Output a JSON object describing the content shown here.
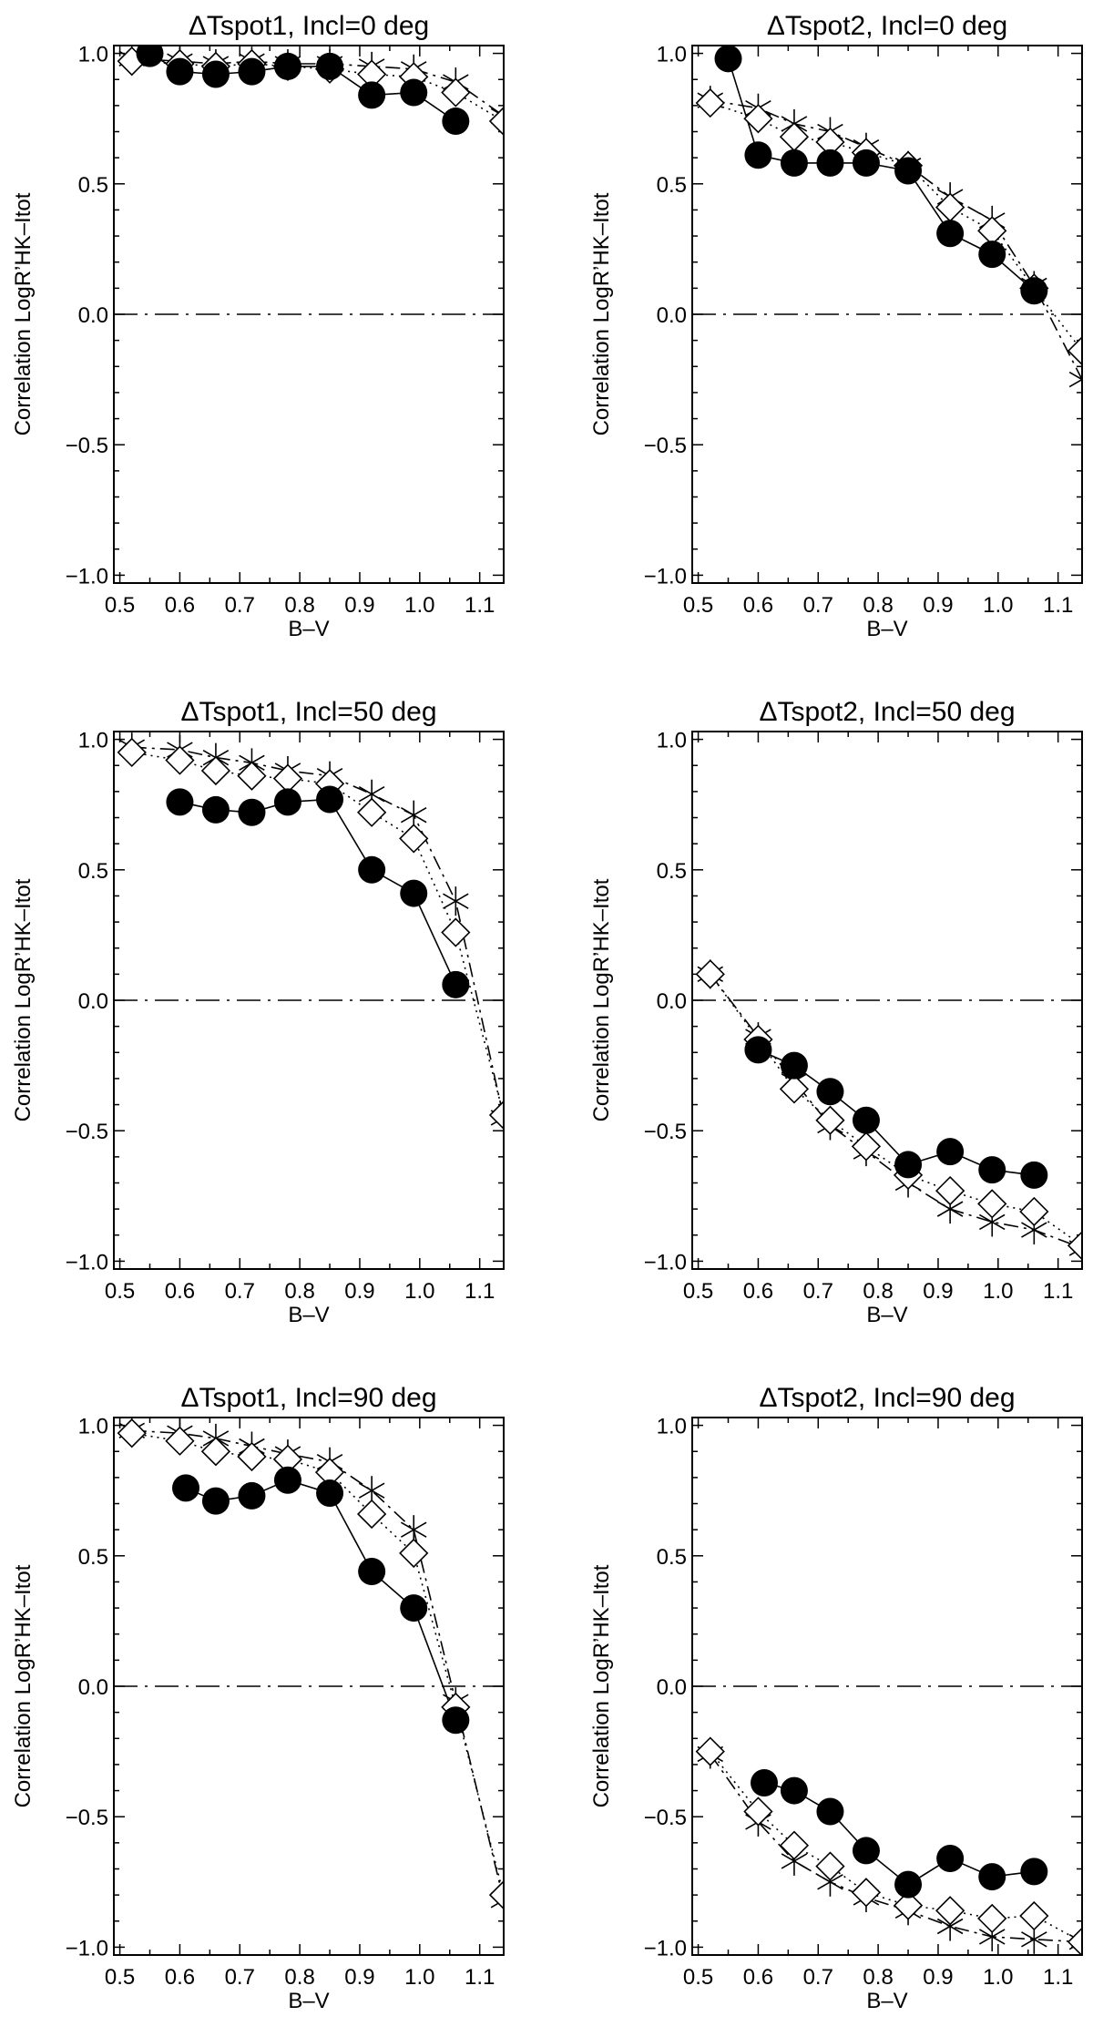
{
  "chart_data": [
    {
      "type": "line",
      "title": "ΔTspot1, Incl=0 deg",
      "xlabel": "B–V",
      "ylabel": "Correlation LogR’HK–Itot",
      "xlim": [
        0.49,
        1.14
      ],
      "ylim": [
        -1.03,
        1.03
      ],
      "xticks": [
        "0.5",
        "0.6",
        "0.7",
        "0.8",
        "0.9",
        "1.0",
        "1.1"
      ],
      "yticks": [
        "−1.0",
        "−0.5",
        "0.0",
        "0.5",
        "1.0"
      ],
      "zero_line": true,
      "series": [
        {
          "name": "filled circles",
          "marker": "circle",
          "line": "solid",
          "x": [
            0.55,
            0.6,
            0.66,
            0.72,
            0.78,
            0.85,
            0.92,
            0.99,
            1.06
          ],
          "y": [
            1.0,
            0.93,
            0.92,
            0.93,
            0.95,
            0.95,
            0.84,
            0.85,
            0.74
          ]
        },
        {
          "name": "diamonds",
          "marker": "diamond",
          "line": "dotted",
          "x": [
            0.52,
            0.6,
            0.66,
            0.72,
            0.78,
            0.85,
            0.92,
            0.99,
            1.06,
            1.14
          ],
          "y": [
            0.97,
            0.96,
            0.95,
            0.96,
            0.95,
            0.94,
            0.92,
            0.91,
            0.85,
            0.74
          ]
        },
        {
          "name": "asterisks",
          "marker": "asterisk",
          "line": "dashdot",
          "x": [
            0.52,
            0.6,
            0.66,
            0.72,
            0.78,
            0.85,
            0.92,
            0.99,
            1.06,
            1.14
          ],
          "y": [
            0.98,
            0.97,
            0.96,
            0.97,
            0.96,
            0.96,
            0.95,
            0.94,
            0.89,
            0.76
          ]
        }
      ]
    },
    {
      "type": "line",
      "title": "ΔTspot2, Incl=0 deg",
      "xlabel": "B–V",
      "ylabel": "Correlation LogR’HK–Itot",
      "xlim": [
        0.49,
        1.14
      ],
      "ylim": [
        -1.03,
        1.03
      ],
      "xticks": [
        "0.5",
        "0.6",
        "0.7",
        "0.8",
        "0.9",
        "1.0",
        "1.1"
      ],
      "yticks": [
        "−1.0",
        "−0.5",
        "0.0",
        "0.5",
        "1.0"
      ],
      "zero_line": true,
      "series": [
        {
          "name": "filled circles",
          "marker": "circle",
          "line": "solid",
          "x": [
            0.55,
            0.6,
            0.66,
            0.72,
            0.78,
            0.85,
            0.92,
            0.99,
            1.06
          ],
          "y": [
            0.98,
            0.61,
            0.58,
            0.58,
            0.58,
            0.55,
            0.31,
            0.23,
            0.09
          ]
        },
        {
          "name": "diamonds",
          "marker": "diamond",
          "line": "dotted",
          "x": [
            0.52,
            0.6,
            0.66,
            0.72,
            0.78,
            0.85,
            0.92,
            0.99,
            1.06,
            1.14
          ],
          "y": [
            0.81,
            0.75,
            0.68,
            0.66,
            0.62,
            0.57,
            0.41,
            0.32,
            0.1,
            -0.14
          ]
        },
        {
          "name": "asterisks",
          "marker": "asterisk",
          "line": "dashdot",
          "x": [
            0.52,
            0.6,
            0.66,
            0.72,
            0.78,
            0.85,
            0.92,
            0.99,
            1.06,
            1.14
          ],
          "y": [
            0.82,
            0.79,
            0.73,
            0.7,
            0.64,
            0.57,
            0.45,
            0.36,
            0.11,
            -0.25
          ]
        }
      ]
    },
    {
      "type": "line",
      "title": "ΔTspot1, Incl=50 deg",
      "xlabel": "B–V",
      "ylabel": "Correlation LogR’HK–Itot",
      "xlim": [
        0.49,
        1.14
      ],
      "ylim": [
        -1.03,
        1.03
      ],
      "xticks": [
        "0.5",
        "0.6",
        "0.7",
        "0.8",
        "0.9",
        "1.0",
        "1.1"
      ],
      "yticks": [
        "−1.0",
        "−0.5",
        "0.0",
        "0.5",
        "1.0"
      ],
      "zero_line": true,
      "series": [
        {
          "name": "filled circles",
          "marker": "circle",
          "line": "solid",
          "x": [
            0.6,
            0.66,
            0.72,
            0.78,
            0.85,
            0.92,
            0.99,
            1.06
          ],
          "y": [
            0.76,
            0.73,
            0.72,
            0.76,
            0.77,
            0.5,
            0.41,
            0.06
          ]
        },
        {
          "name": "diamonds",
          "marker": "diamond",
          "line": "dotted",
          "x": [
            0.52,
            0.6,
            0.66,
            0.72,
            0.78,
            0.85,
            0.92,
            0.99,
            1.06,
            1.14
          ],
          "y": [
            0.95,
            0.92,
            0.88,
            0.86,
            0.85,
            0.83,
            0.72,
            0.62,
            0.26,
            -0.44
          ]
        },
        {
          "name": "asterisks",
          "marker": "asterisk",
          "line": "dashdot",
          "x": [
            0.52,
            0.6,
            0.66,
            0.72,
            0.78,
            0.85,
            0.92,
            0.99,
            1.06,
            1.14
          ],
          "y": [
            0.97,
            0.96,
            0.93,
            0.91,
            0.88,
            0.86,
            0.79,
            0.71,
            0.38,
            -0.45
          ]
        }
      ]
    },
    {
      "type": "line",
      "title": "ΔTspot2, Incl=50 deg",
      "xlabel": "B–V",
      "ylabel": "Correlation LogR’HK–Itot",
      "xlim": [
        0.49,
        1.14
      ],
      "ylim": [
        -1.03,
        1.03
      ],
      "xticks": [
        "0.5",
        "0.6",
        "0.7",
        "0.8",
        "0.9",
        "1.0",
        "1.1"
      ],
      "yticks": [
        "−1.0",
        "−0.5",
        "0.0",
        "0.5",
        "1.0"
      ],
      "zero_line": true,
      "series": [
        {
          "name": "filled circles",
          "marker": "circle",
          "line": "solid",
          "x": [
            0.6,
            0.66,
            0.72,
            0.78,
            0.85,
            0.92,
            0.99,
            1.06
          ],
          "y": [
            -0.19,
            -0.25,
            -0.35,
            -0.46,
            -0.63,
            -0.58,
            -0.65,
            -0.67
          ]
        },
        {
          "name": "diamonds",
          "marker": "diamond",
          "line": "dotted",
          "x": [
            0.52,
            0.6,
            0.66,
            0.72,
            0.78,
            0.85,
            0.92,
            0.99,
            1.06,
            1.14
          ],
          "y": [
            0.1,
            -0.15,
            -0.34,
            -0.46,
            -0.56,
            -0.67,
            -0.73,
            -0.78,
            -0.81,
            -0.94
          ]
        },
        {
          "name": "asterisks",
          "marker": "asterisk",
          "line": "dashdot",
          "x": [
            0.52,
            0.6,
            0.66,
            0.72,
            0.78,
            0.85,
            0.92,
            0.99,
            1.06,
            1.14
          ],
          "y": [
            0.1,
            -0.14,
            -0.31,
            -0.48,
            -0.58,
            -0.7,
            -0.8,
            -0.85,
            -0.88,
            -0.95
          ]
        }
      ]
    },
    {
      "type": "line",
      "title": "ΔTspot1, Incl=90 deg",
      "xlabel": "B–V",
      "ylabel": "Correlation LogR’HK–Itot",
      "xlim": [
        0.49,
        1.14
      ],
      "ylim": [
        -1.03,
        1.03
      ],
      "xticks": [
        "0.5",
        "0.6",
        "0.7",
        "0.8",
        "0.9",
        "1.0",
        "1.1"
      ],
      "yticks": [
        "−1.0",
        "−0.5",
        "0.0",
        "0.5",
        "1.0"
      ],
      "zero_line": true,
      "series": [
        {
          "name": "filled circles",
          "marker": "circle",
          "line": "solid",
          "x": [
            0.61,
            0.66,
            0.72,
            0.78,
            0.85,
            0.92,
            0.99,
            1.06
          ],
          "y": [
            0.76,
            0.71,
            0.73,
            0.79,
            0.74,
            0.44,
            0.3,
            -0.13
          ]
        },
        {
          "name": "diamonds",
          "marker": "diamond",
          "line": "dotted",
          "x": [
            0.52,
            0.6,
            0.66,
            0.72,
            0.78,
            0.85,
            0.92,
            0.99,
            1.06,
            1.14
          ],
          "y": [
            0.97,
            0.94,
            0.9,
            0.88,
            0.87,
            0.82,
            0.66,
            0.51,
            -0.08,
            -0.8
          ]
        },
        {
          "name": "asterisks",
          "marker": "asterisk",
          "line": "dashdot",
          "x": [
            0.52,
            0.6,
            0.66,
            0.72,
            0.78,
            0.85,
            0.92,
            0.99,
            1.06,
            1.14
          ],
          "y": [
            0.98,
            0.97,
            0.95,
            0.92,
            0.89,
            0.86,
            0.75,
            0.6,
            -0.06,
            -0.82
          ]
        }
      ]
    },
    {
      "type": "line",
      "title": "ΔTspot2, Incl=90 deg",
      "xlabel": "B–V",
      "ylabel": "Correlation LogR’HK–Itot",
      "xlim": [
        0.49,
        1.14
      ],
      "ylim": [
        -1.03,
        1.03
      ],
      "xticks": [
        "0.5",
        "0.6",
        "0.7",
        "0.8",
        "0.9",
        "1.0",
        "1.1"
      ],
      "yticks": [
        "−1.0",
        "−0.5",
        "0.0",
        "0.5",
        "1.0"
      ],
      "zero_line": true,
      "series": [
        {
          "name": "filled circles",
          "marker": "circle",
          "line": "solid",
          "x": [
            0.61,
            0.66,
            0.72,
            0.78,
            0.85,
            0.92,
            0.99,
            1.06
          ],
          "y": [
            -0.37,
            -0.4,
            -0.48,
            -0.63,
            -0.76,
            -0.66,
            -0.73,
            -0.71
          ]
        },
        {
          "name": "diamonds",
          "marker": "diamond",
          "line": "dotted",
          "x": [
            0.52,
            0.6,
            0.66,
            0.72,
            0.78,
            0.85,
            0.92,
            0.99,
            1.06,
            1.14
          ],
          "y": [
            -0.25,
            -0.48,
            -0.61,
            -0.69,
            -0.79,
            -0.84,
            -0.86,
            -0.89,
            -0.88,
            -0.98
          ]
        },
        {
          "name": "asterisks",
          "marker": "asterisk",
          "line": "dashdot",
          "x": [
            0.52,
            0.6,
            0.66,
            0.72,
            0.78,
            0.85,
            0.92,
            0.99,
            1.06,
            1.14
          ],
          "y": [
            -0.26,
            -0.52,
            -0.67,
            -0.75,
            -0.81,
            -0.86,
            -0.92,
            -0.96,
            -0.97,
            -0.98
          ]
        }
      ]
    }
  ]
}
